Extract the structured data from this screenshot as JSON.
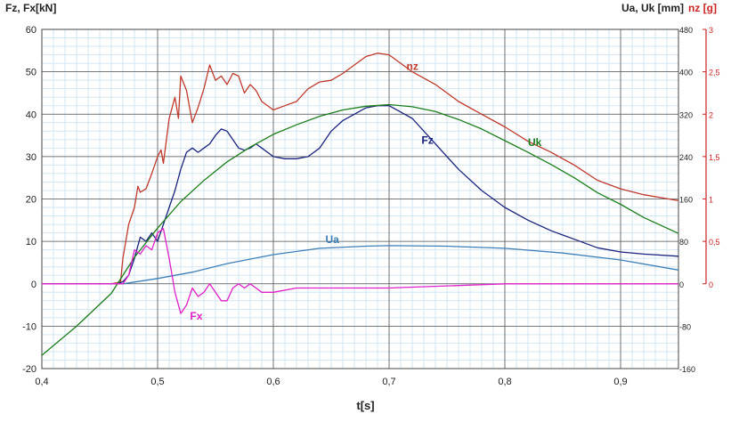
{
  "header": {
    "left_label": "Fz, Fx[kN]",
    "right_label_ua": "Ua, Uk [mm]",
    "right_label_nz": "nz [g]"
  },
  "chart_data": {
    "type": "line",
    "xlabel": "t[s]",
    "xlim": [
      0.4,
      0.95
    ],
    "x_ticks": [
      "0,4",
      "0,5",
      "0,6",
      "0,7",
      "0,8",
      "0,9"
    ],
    "x_tick_values": [
      0.4,
      0.5,
      0.6,
      0.7,
      0.8,
      0.9
    ],
    "left_axis": {
      "label": "Fz, Fx[kN]",
      "lim": [
        -20,
        60
      ],
      "ticks": [
        "-20",
        "-10",
        "0",
        "10",
        "20",
        "30",
        "40",
        "50",
        "60"
      ],
      "tick_values": [
        -20,
        -10,
        0,
        10,
        20,
        30,
        40,
        50,
        60
      ]
    },
    "right_axis_u": {
      "label": "Ua, Uk [mm]",
      "lim": [
        -160,
        480
      ],
      "ticks": [
        "-160",
        "-80",
        "0",
        "80",
        "160",
        "240",
        "320",
        "400",
        "480"
      ],
      "tick_values": [
        -160,
        -80,
        0,
        80,
        160,
        240,
        320,
        400,
        480
      ]
    },
    "right_axis_nz": {
      "label": "nz [g]",
      "lim": [
        0,
        3
      ],
      "ticks": [
        "0",
        "0,5",
        "1",
        "1,5",
        "2",
        "2,5",
        "3"
      ],
      "tick_values": [
        0,
        0.5,
        1,
        1.5,
        2,
        2.5,
        3
      ],
      "color": "#cc2222"
    },
    "grid": true,
    "series": [
      {
        "name": "nz",
        "axis": "nz",
        "color": "#c0392b",
        "label_pos": [
          0.715,
          2.52
        ],
        "x": [
          0.4,
          0.43,
          0.46,
          0.468,
          0.47,
          0.475,
          0.48,
          0.483,
          0.485,
          0.49,
          0.495,
          0.5,
          0.503,
          0.505,
          0.51,
          0.515,
          0.518,
          0.52,
          0.525,
          0.53,
          0.535,
          0.54,
          0.545,
          0.55,
          0.555,
          0.56,
          0.565,
          0.57,
          0.575,
          0.58,
          0.585,
          0.59,
          0.6,
          0.61,
          0.62,
          0.63,
          0.64,
          0.65,
          0.66,
          0.67,
          0.68,
          0.69,
          0.7,
          0.72,
          0.74,
          0.76,
          0.78,
          0.8,
          0.82,
          0.84,
          0.86,
          0.88,
          0.9,
          0.92,
          0.95
        ],
        "y": [
          0.0,
          0.0,
          0.0,
          0.02,
          0.3,
          0.7,
          0.9,
          1.15,
          1.08,
          1.12,
          1.3,
          1.5,
          1.58,
          1.42,
          1.95,
          2.2,
          1.95,
          2.45,
          2.28,
          1.9,
          2.08,
          2.3,
          2.58,
          2.4,
          2.45,
          2.35,
          2.48,
          2.45,
          2.25,
          2.35,
          2.28,
          2.15,
          2.05,
          2.1,
          2.15,
          2.3,
          2.38,
          2.4,
          2.48,
          2.58,
          2.68,
          2.72,
          2.7,
          2.5,
          2.35,
          2.15,
          2.0,
          1.85,
          1.68,
          1.55,
          1.4,
          1.22,
          1.12,
          1.05,
          0.98
        ]
      },
      {
        "name": "Fz",
        "axis": "left",
        "color": "#1a237e",
        "label_pos": [
          0.728,
          33
        ],
        "x": [
          0.4,
          0.43,
          0.46,
          0.465,
          0.47,
          0.475,
          0.48,
          0.485,
          0.49,
          0.495,
          0.5,
          0.505,
          0.51,
          0.515,
          0.52,
          0.525,
          0.53,
          0.535,
          0.54,
          0.545,
          0.55,
          0.555,
          0.56,
          0.565,
          0.57,
          0.575,
          0.58,
          0.585,
          0.59,
          0.6,
          0.61,
          0.62,
          0.63,
          0.64,
          0.65,
          0.66,
          0.67,
          0.68,
          0.69,
          0.7,
          0.72,
          0.74,
          0.76,
          0.78,
          0.8,
          0.82,
          0.84,
          0.86,
          0.88,
          0.9,
          0.92,
          0.95
        ],
        "y": [
          0,
          0,
          0,
          0,
          0.5,
          2,
          6,
          11,
          10,
          12,
          10,
          14,
          18,
          22,
          27,
          31,
          32,
          31,
          32,
          33,
          35,
          36.5,
          36,
          34,
          32,
          31.5,
          32,
          33,
          32,
          30,
          29.5,
          29.5,
          30,
          32,
          36,
          38.5,
          40,
          41.5,
          42,
          42,
          39,
          33,
          27,
          22,
          18,
          15,
          12.5,
          10.5,
          8.5,
          7.5,
          7,
          6.5
        ]
      },
      {
        "name": "Uk",
        "axis": "u",
        "color": "#1b7e1b",
        "label_pos": [
          0.82,
          260
        ],
        "x": [
          0.4,
          0.43,
          0.46,
          0.48,
          0.5,
          0.52,
          0.54,
          0.56,
          0.58,
          0.6,
          0.62,
          0.64,
          0.66,
          0.68,
          0.7,
          0.72,
          0.74,
          0.76,
          0.78,
          0.8,
          0.82,
          0.84,
          0.86,
          0.88,
          0.9,
          0.92,
          0.95
        ],
        "y": [
          -135,
          -80,
          -18,
          50,
          105,
          155,
          195,
          230,
          258,
          282,
          300,
          316,
          328,
          335,
          338,
          334,
          325,
          310,
          292,
          270,
          248,
          225,
          200,
          172,
          150,
          125,
          95
        ]
      },
      {
        "name": "Ua",
        "axis": "u",
        "color": "#3d7fb8",
        "label_pos": [
          0.645,
          77
        ],
        "x": [
          0.4,
          0.43,
          0.46,
          0.47,
          0.5,
          0.53,
          0.56,
          0.6,
          0.64,
          0.68,
          0.7,
          0.75,
          0.8,
          0.85,
          0.9,
          0.95
        ],
        "y": [
          0,
          0,
          0,
          0,
          10,
          22,
          38,
          55,
          67,
          71,
          72,
          71,
          67,
          58,
          45,
          26
        ]
      },
      {
        "name": "Fx",
        "axis": "left",
        "color": "#e020c8",
        "label_pos": [
          0.528,
          -8.5
        ],
        "x": [
          0.4,
          0.43,
          0.46,
          0.465,
          0.47,
          0.475,
          0.48,
          0.485,
          0.49,
          0.495,
          0.5,
          0.505,
          0.51,
          0.515,
          0.52,
          0.525,
          0.53,
          0.535,
          0.54,
          0.545,
          0.55,
          0.555,
          0.56,
          0.565,
          0.57,
          0.575,
          0.58,
          0.585,
          0.59,
          0.6,
          0.62,
          0.64,
          0.66,
          0.7,
          0.8,
          0.9,
          0.95
        ],
        "y": [
          0,
          0,
          0,
          0,
          0,
          2,
          8,
          7,
          9,
          8,
          12,
          13,
          6,
          -2,
          -7,
          -5,
          -1,
          -3,
          -2,
          0,
          -2,
          -4,
          -4,
          -1,
          0,
          -1,
          0,
          -1,
          -2,
          -2,
          -1,
          -1,
          -1,
          -1,
          0,
          0,
          0
        ]
      }
    ]
  }
}
